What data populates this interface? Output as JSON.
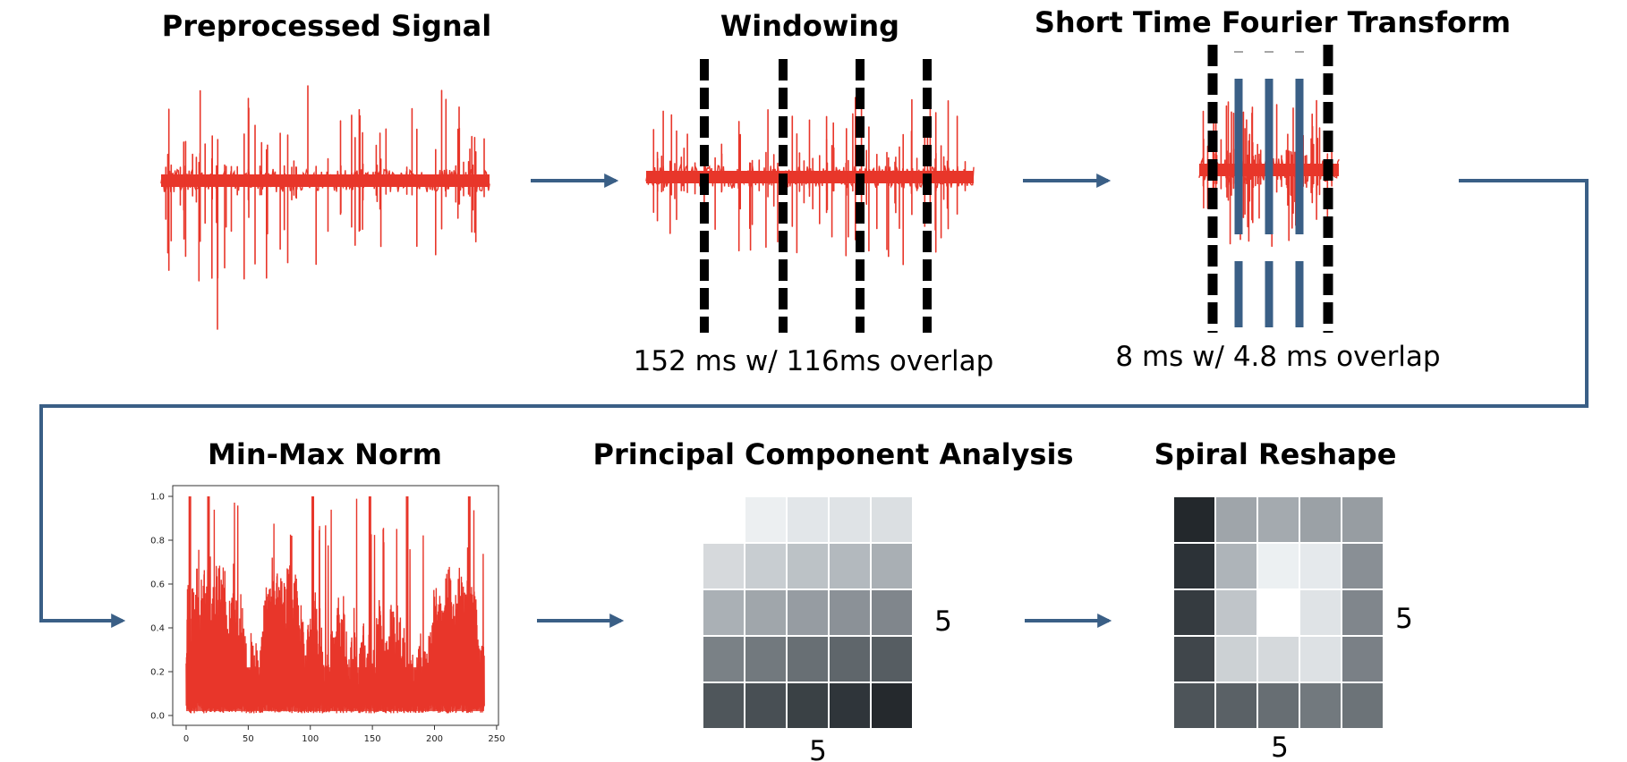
{
  "steps": {
    "preprocessed": {
      "title": "Preprocessed Signal"
    },
    "windowing": {
      "title": "Windowing",
      "caption": "152 ms w/ 116ms overlap"
    },
    "stft": {
      "title": "Short Time Fourier Transform",
      "caption": "8 ms w/ 4.8 ms overlap"
    },
    "minmax": {
      "title": "Min-Max Norm"
    },
    "pca": {
      "title": "Principal Component Analysis",
      "dim_right": "5",
      "dim_bottom": "5"
    },
    "spiral": {
      "title": "Spiral Reshape",
      "dim_right": "5",
      "dim_bottom": "5"
    }
  },
  "chart_data": {
    "type": "line",
    "x_ticks": [
      "0",
      "50",
      "100",
      "150",
      "200",
      "250"
    ],
    "y_ticks": [
      "0.0",
      "0.2",
      "0.4",
      "0.6",
      "0.8",
      "1.0"
    ],
    "xlim": [
      0,
      250
    ],
    "ylim": [
      0,
      1
    ],
    "series_color": "#e8362a"
  },
  "colors": {
    "signal": "#e8362a",
    "arrow": "#3a5f86",
    "window_line": "#000000",
    "stft_bar": "#3a5f86"
  },
  "pca_grid": [
    [
      null,
      "#eceff1",
      "#e2e6e9",
      "#dfe3e6",
      "#dbdfe2"
    ],
    [
      "#d6d9dc",
      "#c8cdd1",
      "#bcc2c6",
      "#b3b9be",
      "#a9afb4"
    ],
    [
      "#aab0b5",
      "#a0a6ab",
      "#969ca2",
      "#8b9197",
      "#80868c"
    ],
    [
      "#7a8186",
      "#72797e",
      "#686f74",
      "#5f666b",
      "#565d62"
    ],
    [
      "#4f565b",
      "#484f54",
      "#3a4145",
      "#2f353a",
      "#25292d"
    ]
  ],
  "spiral_grid": [
    [
      "#23282c",
      "#9fa5aa",
      "#a4aaaf",
      "#9ba1a6",
      "#979da2"
    ],
    [
      "#2c3237",
      "#aeb4b9",
      "#ecf0f2",
      "#e5e9ec",
      "#898f95"
    ],
    [
      "#353b40",
      "#c0c5c9",
      "#ffffff",
      "#dfe3e6",
      "#80868c"
    ],
    [
      "#40464b",
      "#ccd1d4",
      "#d5d9dc",
      "#dde1e4",
      "#7a8086"
    ],
    [
      "#4d5459",
      "#5a6166",
      "#676e73",
      "#72797e",
      "#6c7378"
    ]
  ]
}
